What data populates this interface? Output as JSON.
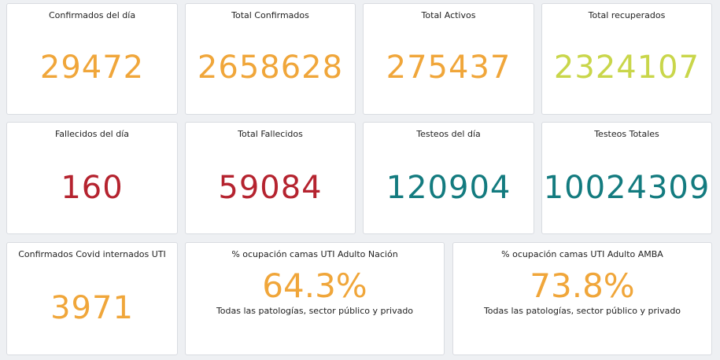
{
  "colors": {
    "orange": "#f0a63a",
    "yellow_green": "#c9d64a",
    "red": "#b5232f",
    "teal": "#137b7f"
  },
  "cards": [
    {
      "title": "Confirmados del día",
      "value": "29472",
      "color": "#f0a63a"
    },
    {
      "title": "Total Confirmados",
      "value": "2658628",
      "color": "#f0a63a"
    },
    {
      "title": "Total Activos",
      "value": "275437",
      "color": "#f0a63a"
    },
    {
      "title": "Total recuperados",
      "value": "2324107",
      "color": "#c9d64a"
    },
    {
      "title": "Fallecidos del día",
      "value": "160",
      "color": "#b5232f"
    },
    {
      "title": "Total Fallecidos",
      "value": "59084",
      "color": "#b5232f"
    },
    {
      "title": "Testeos del día",
      "value": "120904",
      "color": "#137b7f"
    },
    {
      "title": "Testeos Totales",
      "value": "10024309",
      "color": "#137b7f"
    },
    {
      "title": "Confirmados Covid internados UTI",
      "value": "3971",
      "color": "#f0a63a"
    },
    {
      "title": "% ocupación camas UTI Adulto Nación",
      "value": "64.3%",
      "subtitle": "Todas las patologías, sector público y privado",
      "color": "#f0a63a"
    },
    {
      "title": "% ocupación camas UTI Adulto AMBA",
      "value": "73.8%",
      "subtitle": "Todas las patologías, sector público y privado",
      "color": "#f0a63a"
    }
  ]
}
